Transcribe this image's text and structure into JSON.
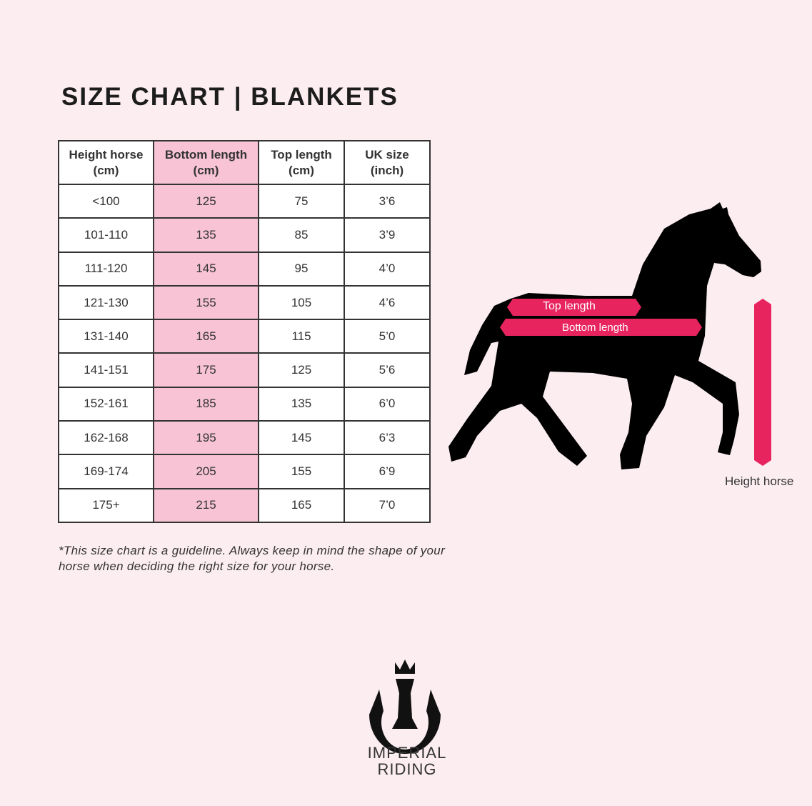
{
  "title": "SIZE CHART | BLANKETS",
  "table": {
    "headers": [
      [
        "Height horse",
        "(cm)"
      ],
      [
        "Bottom length",
        "(cm)"
      ],
      [
        "Top length",
        "(cm)"
      ],
      [
        "UK size",
        "(inch)"
      ]
    ],
    "rows": [
      [
        "<100",
        "125",
        "75",
        "3’6"
      ],
      [
        "101-110",
        "135",
        "85",
        "3’9"
      ],
      [
        "111-120",
        "145",
        "95",
        "4’0"
      ],
      [
        "121-130",
        "155",
        "105",
        "4’6"
      ],
      [
        "131-140",
        "165",
        "115",
        "5’0"
      ],
      [
        "141-151",
        "175",
        "125",
        "5’6"
      ],
      [
        "152-161",
        "185",
        "135",
        "6’0"
      ],
      [
        "162-168",
        "195",
        "145",
        "6’3"
      ],
      [
        "169-174",
        "205",
        "155",
        "6’9"
      ],
      [
        "175+",
        "215",
        "165",
        "7’0"
      ]
    ],
    "highlight_color": "#f7c3d5"
  },
  "note": "*This size chart is a guideline. Always keep in mind the shape of your horse when deciding the right size for your horse.",
  "diagram": {
    "top_length_label": "Top length",
    "bottom_length_label": "Bottom length",
    "height_label": "Height horse",
    "arrow_color": "#e8245f",
    "silhouette_icon": "horse-silhouette-icon"
  },
  "brand": {
    "line1": "IMPERIAL",
    "line2": "RIDING",
    "logo_icon": "horseshoe-crown-logo"
  }
}
